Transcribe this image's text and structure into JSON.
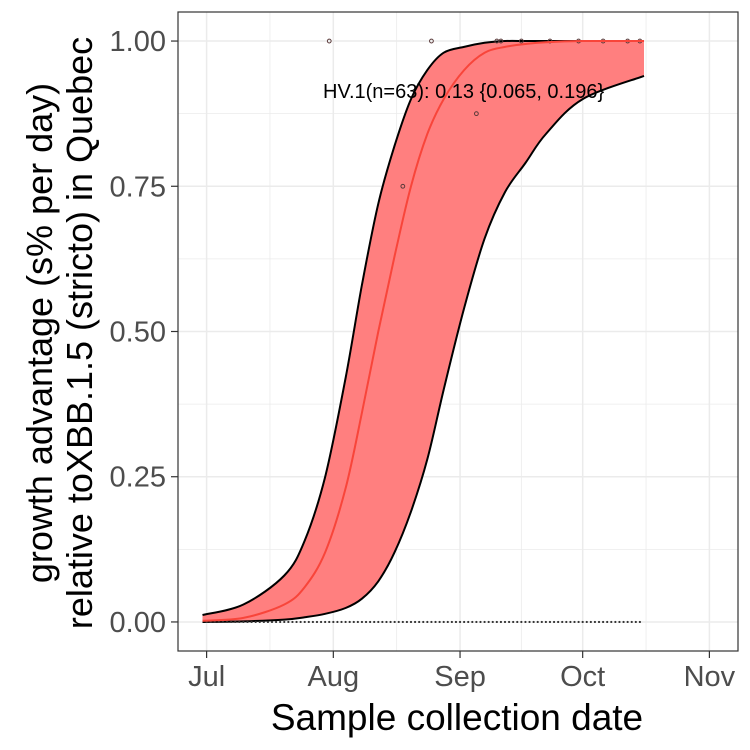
{
  "chart_data": {
    "type": "line",
    "xlabel": "Sample collection date",
    "ylabel_lines": [
      "growth advantage (s% per day)",
      "relative toXBB.1.5 (stricto) in Quebec"
    ],
    "x_tick_labels": [
      "Jul",
      "Aug",
      "Sep",
      "Oct",
      "Nov"
    ],
    "x_ticks": [
      "2023-07-01",
      "2023-08-01",
      "2023-09-01",
      "2023-10-01",
      "2023-11-01"
    ],
    "xlim": [
      "2023-06-24",
      "2023-11-08"
    ],
    "y_ticks": [
      0.0,
      0.25,
      0.5,
      0.75,
      1.0
    ],
    "y_tick_labels": [
      "0.00",
      "0.25",
      "0.50",
      "0.75",
      "1.00"
    ],
    "ylim": [
      -0.05,
      1.05
    ],
    "grid": true,
    "annotation": "HV.1(n=63): 0.13 {0.065, 0.196}",
    "series": [
      {
        "x": [
          "2023-06-30",
          "2023-07-10",
          "2023-07-20",
          "2023-07-25",
          "2023-07-30",
          "2023-08-04",
          "2023-08-08",
          "2023-08-12",
          "2023-08-16",
          "2023-08-20",
          "2023-08-24",
          "2023-08-28",
          "2023-09-02",
          "2023-09-07",
          "2023-09-12",
          "2023-09-17",
          "2023-09-22",
          "2023-10-01",
          "2023-10-16"
        ],
        "fit": [
          0.002,
          0.007,
          0.03,
          0.06,
          0.12,
          0.23,
          0.36,
          0.5,
          0.63,
          0.75,
          0.84,
          0.9,
          0.95,
          0.98,
          0.99,
          0.995,
          0.998,
          1.0,
          1.0
        ],
        "upper": [
          0.012,
          0.03,
          0.08,
          0.14,
          0.25,
          0.42,
          0.58,
          0.72,
          0.82,
          0.9,
          0.95,
          0.98,
          0.99,
          0.997,
          1.0,
          1.0,
          1.0,
          1.0,
          1.0
        ],
        "lower": [
          0.0,
          0.001,
          0.004,
          0.008,
          0.014,
          0.024,
          0.04,
          0.07,
          0.12,
          0.19,
          0.28,
          0.4,
          0.54,
          0.66,
          0.74,
          0.79,
          0.84,
          0.9,
          0.94
        ]
      }
    ],
    "points": [
      {
        "x": "2023-07-31",
        "y": 1.0
      },
      {
        "x": "2023-08-18",
        "y": 0.75
      },
      {
        "x": "2023-08-25",
        "y": 1.0
      },
      {
        "x": "2023-09-05",
        "y": 0.875
      },
      {
        "x": "2023-09-10",
        "y": 1.0
      },
      {
        "x": "2023-09-11",
        "y": 1.0
      },
      {
        "x": "2023-09-16",
        "y": 1.0
      },
      {
        "x": "2023-09-23",
        "y": 1.0
      },
      {
        "x": "2023-09-30",
        "y": 1.0
      },
      {
        "x": "2023-10-06",
        "y": 1.0
      },
      {
        "x": "2023-10-12",
        "y": 1.0
      },
      {
        "x": "2023-10-15",
        "y": 1.0
      }
    ],
    "zero_points_range": [
      "2023-07-01",
      "2023-10-15"
    ],
    "colors": {
      "band": "#ff7f7f",
      "fit": "#f8453a",
      "band_edge": "#000000",
      "grid": "#ebebeb",
      "panel_border": "#333333"
    }
  }
}
